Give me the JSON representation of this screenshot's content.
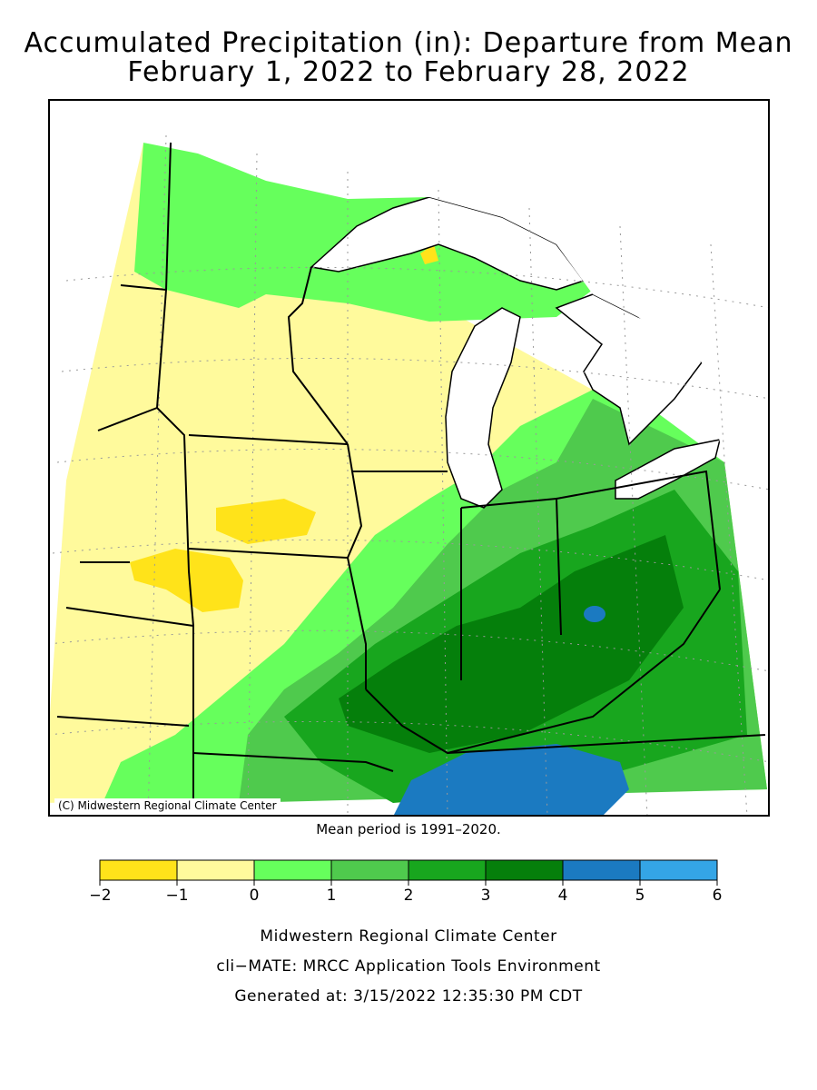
{
  "title": {
    "line1": "Accumulated Precipitation (in): Departure from Mean",
    "line2": "February 1, 2022 to February 28, 2022"
  },
  "map": {
    "credit": "(C) Midwestern Regional Climate Center",
    "mean_period": "Mean period is 1991–2020."
  },
  "legend": {
    "bins": [
      {
        "from": -2,
        "to": -1,
        "color": "#ffe31a"
      },
      {
        "from": -1,
        "to": 0,
        "color": "#fffa9c"
      },
      {
        "from": 0,
        "to": 1,
        "color": "#66ff5c"
      },
      {
        "from": 1,
        "to": 2,
        "color": "#4fca4d"
      },
      {
        "from": 2,
        "to": 3,
        "color": "#18a61e"
      },
      {
        "from": 3,
        "to": 4,
        "color": "#057f0b"
      },
      {
        "from": 4,
        "to": 5,
        "color": "#1b7ac1"
      },
      {
        "from": 5,
        "to": 6,
        "color": "#34a5e6"
      }
    ],
    "tick_labels": [
      "−2",
      "−1",
      "0",
      "1",
      "2",
      "3",
      "4",
      "5",
      "6"
    ]
  },
  "footer": {
    "line1": "Midwestern Regional Climate Center",
    "line2": "cli−MATE: MRCC Application Tools Environment",
    "line3": "Generated at: 3/15/2022 12:35:30 PM CDT"
  }
}
